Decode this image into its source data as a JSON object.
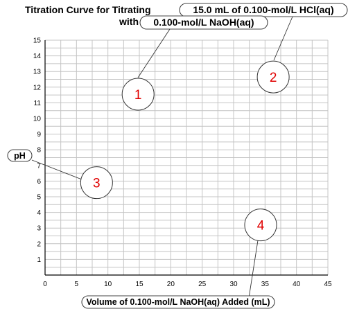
{
  "chart_data": {
    "type": "line",
    "title_prefix": "Titration Curve for Titrating",
    "title_highlight_1": "15.0 mL of 0.100-mol/L HCl(aq)",
    "title_connector": "with",
    "title_highlight_2": "0.100-mol/L NaOH(aq)",
    "xlabel": "Volume of 0.100-mol/L NaOH(aq) Added (mL)",
    "ylabel": "pH",
    "xlim": [
      0,
      45
    ],
    "ylim": [
      0,
      15
    ],
    "x_ticks": [
      "0",
      "5",
      "10",
      "15",
      "20",
      "25",
      "30",
      "35",
      "40",
      "45"
    ],
    "y_ticks": [
      "1",
      "2",
      "3",
      "4",
      "5",
      "6",
      "7",
      "8",
      "9",
      "10",
      "11",
      "12",
      "13",
      "14",
      "15"
    ],
    "grid": true,
    "series": [],
    "callouts": [
      {
        "label": "1",
        "x": 14.8,
        "y": 11.55
      },
      {
        "label": "2",
        "x": 36.3,
        "y": 12.65
      },
      {
        "label": "3",
        "x": 8.2,
        "y": 5.9
      },
      {
        "label": "4",
        "x": 34.3,
        "y": 3.2
      }
    ]
  },
  "colors": {
    "callout_number": "#e00000",
    "grid": "#c4c4c4"
  }
}
